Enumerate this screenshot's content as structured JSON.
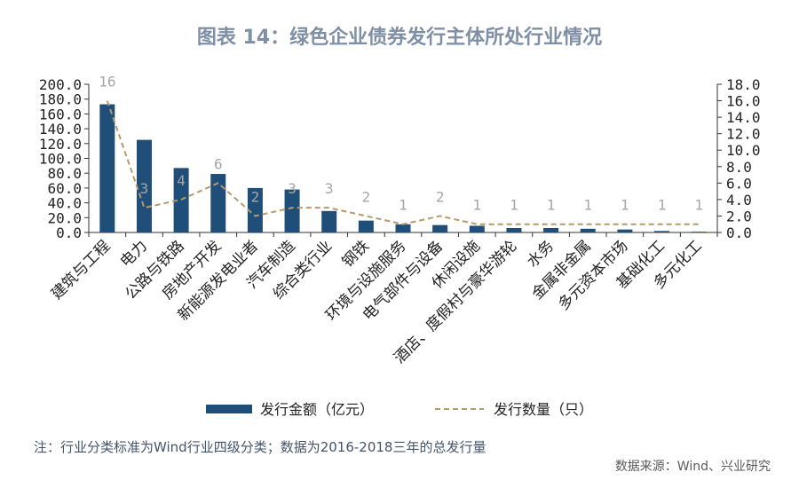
{
  "title": "图表 14：绿色企业债券发行主体所处行业情况",
  "note": "注：行业分类标准为Wind行业四级分类；数据为2016-2018三年的总发行量",
  "source": "数据来源：Wind、兴业研究",
  "colors": {
    "bar": "#1f4e79",
    "line": "#b59a6a",
    "line_label": "#a6a6a6",
    "title": "#7f8fa6",
    "axis": "#333333"
  },
  "chart_data": {
    "type": "bar",
    "categories": [
      "建筑与工程",
      "电力",
      "公路与铁路",
      "房地产开发",
      "新能源发电业者",
      "汽车制造",
      "综合类行业",
      "钢铁",
      "环境与设施服务",
      "电气部件与设备",
      "休闲设施",
      "酒店、度假村与豪华游轮",
      "水务",
      "金属非金属",
      "多元资本市场",
      "基础化工",
      "多元化工"
    ],
    "series": [
      {
        "name": "发行金额（亿元）",
        "type": "bar",
        "axis": "left",
        "values": [
          173,
          125,
          87,
          79,
          60,
          58,
          29,
          16,
          11,
          10,
          9,
          6,
          6,
          5,
          4,
          2,
          1
        ]
      },
      {
        "name": "发行数量（只）",
        "type": "line",
        "axis": "right",
        "values": [
          16,
          3,
          4,
          6,
          2,
          3,
          3,
          2,
          1,
          2,
          1,
          1,
          1,
          1,
          1,
          1,
          1
        ]
      }
    ],
    "left_axis": {
      "range": [
        0,
        200
      ],
      "ticks": [
        "0.0",
        "20.0",
        "40.0",
        "60.0",
        "80.0",
        "100.0",
        "120.0",
        "140.0",
        "160.0",
        "180.0",
        "200.0"
      ]
    },
    "right_axis": {
      "range": [
        0,
        18
      ],
      "ticks": [
        "0.0",
        "2.0",
        "4.0",
        "6.0",
        "8.0",
        "10.0",
        "12.0",
        "14.0",
        "16.0",
        "18.0"
      ]
    },
    "legend_position": "bottom",
    "grid": false
  }
}
